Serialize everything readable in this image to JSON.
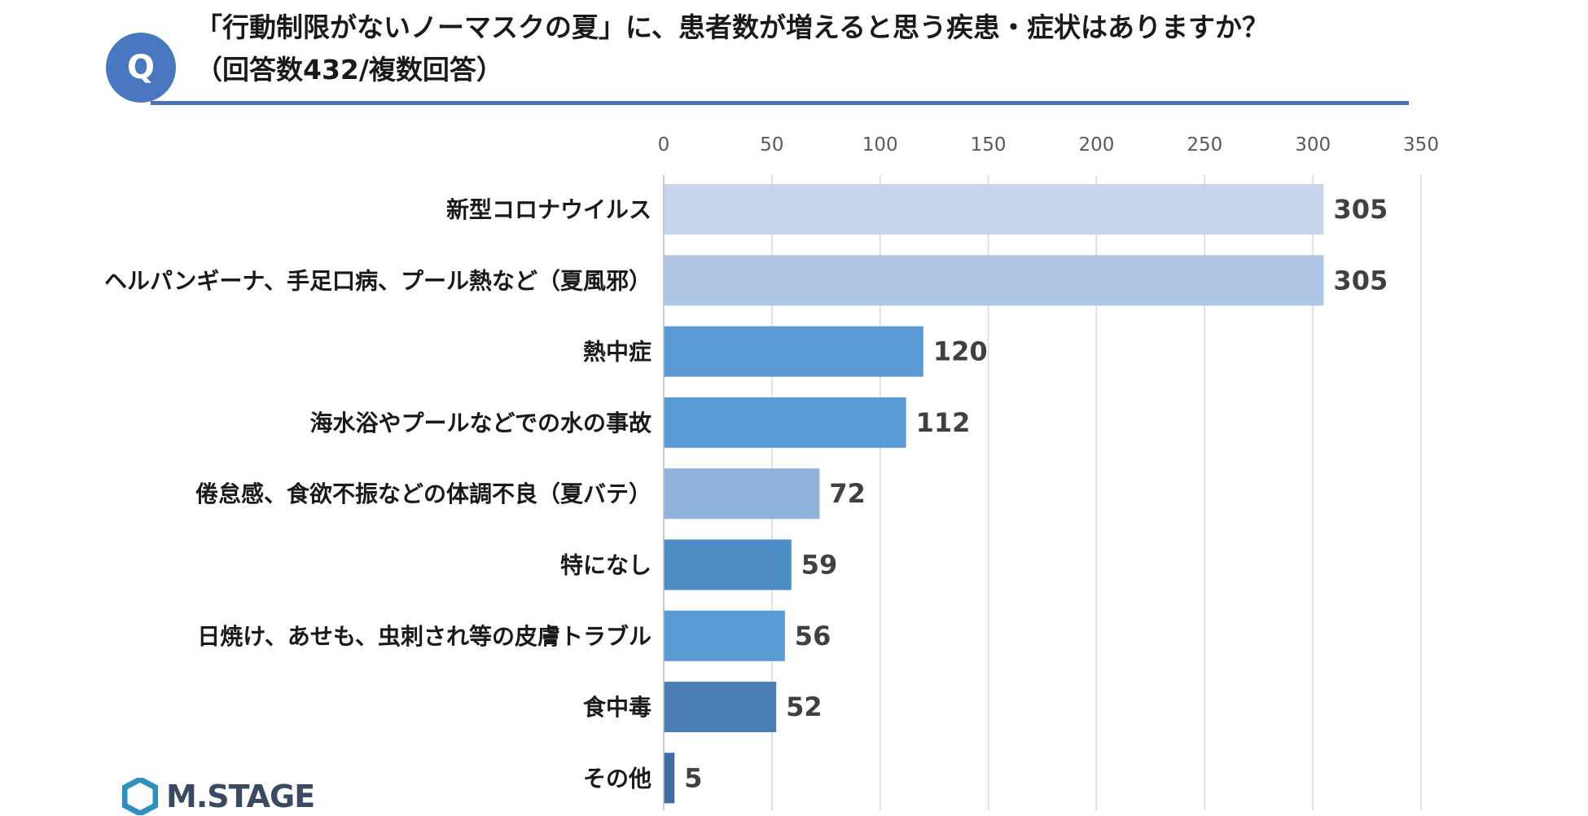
{
  "header": {
    "q_badge": "Q",
    "title_line1": "「行動制限がないノーマスクの夏」に、患者数が増えると思う疾患・症状はありますか？",
    "title_line2": "（回答数432/複数回答）"
  },
  "logo": {
    "text": "M.STAGE",
    "icon": "hexagon-logo-icon"
  },
  "colors": {
    "accent": "#4a73b5",
    "bars": [
      "#c7d6ec",
      "#aec5e6",
      "#5b9bd5",
      "#5b9bd5",
      "#8eb4de",
      "#4e8cc6",
      "#5b9bd5",
      "#4a7eb3",
      "#3d6ea5"
    ]
  },
  "chart_data": {
    "type": "bar",
    "orientation": "horizontal",
    "title": "「行動制限がないノーマスクの夏」に、患者数が増えると思う疾患・症状はありますか？（回答数432/複数回答）",
    "categories": [
      "新型コロナウイルス",
      "ヘルパンギーナ、手足口病、プール熱など（夏風邪）",
      "熱中症",
      "海水浴やプールなどでの水の事故",
      "倦怠感、食欲不振などの体調不良（夏バテ）",
      "特になし",
      "日焼け、あせも、虫刺され等の皮膚トラブル",
      "食中毒",
      "その他"
    ],
    "values": [
      305,
      305,
      120,
      112,
      72,
      59,
      56,
      52,
      5
    ],
    "xlim": [
      0,
      350
    ],
    "ticks": [
      0,
      50,
      100,
      150,
      200,
      250,
      300,
      350
    ],
    "grid": true,
    "xlabel": "",
    "ylabel": ""
  }
}
